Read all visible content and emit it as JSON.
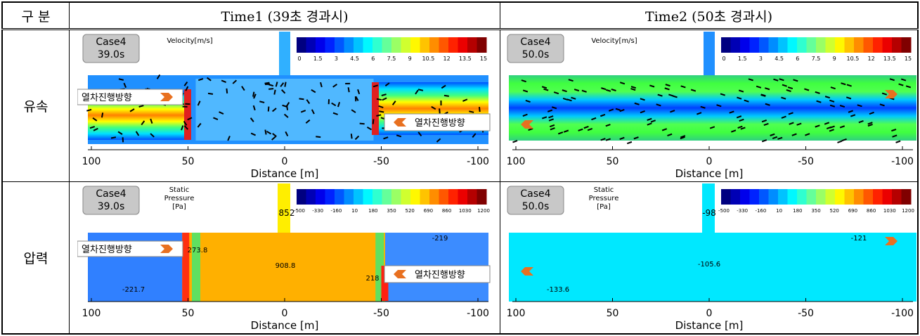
{
  "table": {
    "header": [
      "구 분",
      "Time1 (39초 경과시)",
      "Time2 (50초 경과시)"
    ],
    "rows": [
      {
        "label": "유속",
        "panels": [
          {
            "case": "Case4",
            "time": "39.0s",
            "legend_title": [
              "Velocity[m/s]"
            ],
            "colorbar_ticks": [
              "0",
              "1.5",
              "3",
              "4.5",
              "6",
              "7.5",
              "9",
              "10.5",
              "12",
              "13.5",
              "15"
            ],
            "direction_labels": [
              "열차진행방향",
              "열차진행방향"
            ],
            "x_ticks": [
              "100",
              "50",
              "0",
              "-50",
              "-100"
            ],
            "x_label": "Distance [m]"
          },
          {
            "case": "Case4",
            "time": "50.0s",
            "legend_title": [
              "Velocity[m/s]"
            ],
            "colorbar_ticks": [
              "0",
              "1.5",
              "3",
              "4.5",
              "6",
              "7.5",
              "9",
              "10.5",
              "12",
              "13.5",
              "15"
            ],
            "x_ticks": [
              "100",
              "50",
              "0",
              "-50",
              "-100"
            ],
            "x_label": "Distance [m]"
          }
        ]
      },
      {
        "label": "압력",
        "panels": [
          {
            "case": "Case4",
            "time": "39.0s",
            "legend_title": [
              "Static",
              "Pressure",
              "[Pa]"
            ],
            "colorbar_ticks": [
              "-500",
              "-330",
              "-160",
              "10",
              "180",
              "350",
              "520",
              "690",
              "860",
              "1030",
              "1200"
            ],
            "direction_labels": [
              "열차진행방향",
              "열차진행방향"
            ],
            "annotations": [
              "852",
              "273.8",
              "908.8",
              "-221.7",
              "218",
              "-219"
            ],
            "x_ticks": [
              "100",
              "50",
              "0",
              "-50",
              "-100"
            ],
            "x_label": "Distance [m]"
          },
          {
            "case": "Case4",
            "time": "50.0s",
            "legend_title": [
              "Static",
              "Pressure",
              "[Pa]"
            ],
            "colorbar_ticks": [
              "-500",
              "-330",
              "-160",
              "10",
              "180",
              "350",
              "520",
              "690",
              "860",
              "1030",
              "1200"
            ],
            "annotations": [
              "-98",
              "-121",
              "-105.6",
              "-133.6"
            ],
            "x_ticks": [
              "100",
              "50",
              "0",
              "-50",
              "-100"
            ],
            "x_label": "Distance [m]"
          }
        ]
      }
    ]
  }
}
